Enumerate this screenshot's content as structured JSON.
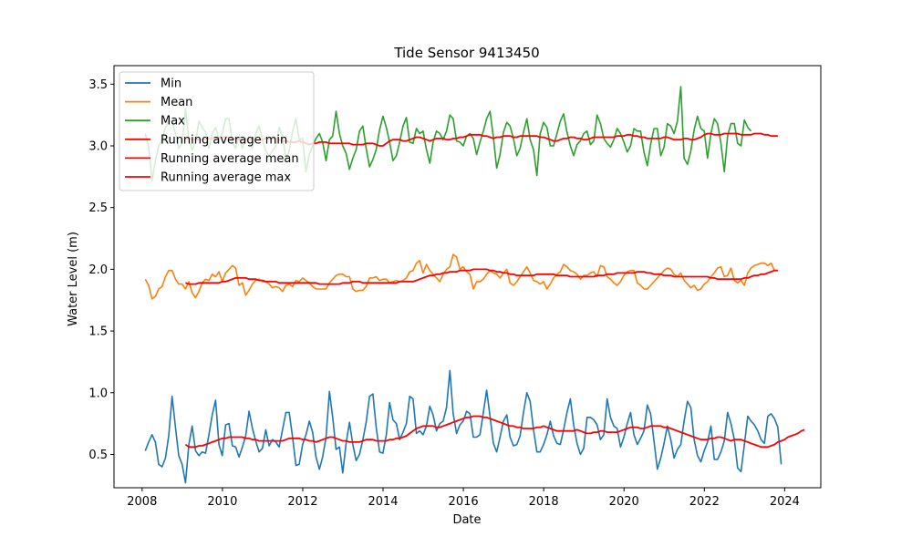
{
  "chart_data": {
    "type": "line",
    "title": "Tide Sensor 9413450",
    "xlabel": "Date",
    "ylabel": "Water Level (m)",
    "xlim": [
      2007.3,
      2024.9
    ],
    "ylim": [
      0.23,
      3.65
    ],
    "xticks": [
      2008,
      2010,
      2012,
      2014,
      2016,
      2018,
      2020,
      2022,
      2024
    ],
    "yticks": [
      0.5,
      1.0,
      1.5,
      2.0,
      2.5,
      3.0,
      3.5
    ],
    "ytick_labels": [
      "0.5",
      "1.0",
      "1.5",
      "2.0",
      "2.5",
      "3.0",
      "3.5"
    ],
    "legend_position": "upper-left",
    "grid": false,
    "x_start": 2008.08,
    "x_step": 0.0833333,
    "series": [
      {
        "name": "Min",
        "color": "#1f77b4",
        "values": [
          0.53,
          0.6,
          0.66,
          0.6,
          0.42,
          0.4,
          0.47,
          0.65,
          0.97,
          0.72,
          0.49,
          0.42,
          0.27,
          0.58,
          0.73,
          0.53,
          0.49,
          0.52,
          0.51,
          0.66,
          0.82,
          0.94,
          0.58,
          0.49,
          0.74,
          0.75,
          0.57,
          0.56,
          0.48,
          0.56,
          0.65,
          0.85,
          0.71,
          0.61,
          0.52,
          0.55,
          0.7,
          0.57,
          0.62,
          0.6,
          0.56,
          0.7,
          0.84,
          0.84,
          0.64,
          0.41,
          0.42,
          0.58,
          0.66,
          0.77,
          0.68,
          0.48,
          0.38,
          0.48,
          0.64,
          1.01,
          0.8,
          0.54,
          0.56,
          0.35,
          0.59,
          0.76,
          0.58,
          0.45,
          0.5,
          0.62,
          0.76,
          0.97,
          0.99,
          0.72,
          0.52,
          0.51,
          0.66,
          0.92,
          0.78,
          0.75,
          0.62,
          0.68,
          0.75,
          0.97,
          0.95,
          0.67,
          0.69,
          0.66,
          0.73,
          0.89,
          0.82,
          0.69,
          0.75,
          0.77,
          0.88,
          1.18,
          0.83,
          0.67,
          0.74,
          0.77,
          0.85,
          0.83,
          0.64,
          0.64,
          0.66,
          0.84,
          1.02,
          0.81,
          0.59,
          0.52,
          0.64,
          0.77,
          0.82,
          0.64,
          0.57,
          0.58,
          0.65,
          0.84,
          1.0,
          0.93,
          0.7,
          0.52,
          0.52,
          0.58,
          0.66,
          0.77,
          0.65,
          0.59,
          0.58,
          0.7,
          0.84,
          0.95,
          0.74,
          0.59,
          0.5,
          0.55,
          0.8,
          0.8,
          0.78,
          0.74,
          0.62,
          0.66,
          0.95,
          0.8,
          0.73,
          0.71,
          0.56,
          0.64,
          0.75,
          0.84,
          0.66,
          0.58,
          0.63,
          0.69,
          0.9,
          0.83,
          0.61,
          0.38,
          0.47,
          0.59,
          0.73,
          0.62,
          0.47,
          0.54,
          0.58,
          0.77,
          0.93,
          0.88,
          0.62,
          0.49,
          0.44,
          0.53,
          0.6,
          0.73,
          0.46,
          0.46,
          0.52,
          0.61,
          0.84,
          0.75,
          0.62,
          0.39,
          0.36,
          0.58,
          0.81,
          0.77,
          0.74,
          0.69,
          0.62,
          0.59,
          0.81,
          0.83,
          0.79,
          0.72,
          0.42
        ]
      },
      {
        "name": "Mean",
        "color": "#ff7f0e",
        "values": [
          1.92,
          1.87,
          1.76,
          1.78,
          1.84,
          1.86,
          1.94,
          1.99,
          1.99,
          1.92,
          1.88,
          1.88,
          1.84,
          1.9,
          1.81,
          1.77,
          1.82,
          1.89,
          1.92,
          1.91,
          1.96,
          1.94,
          1.98,
          1.9,
          1.97,
          2.0,
          2.03,
          2.01,
          1.87,
          1.89,
          1.79,
          1.83,
          1.88,
          1.91,
          1.92,
          1.9,
          1.9,
          1.88,
          1.85,
          1.86,
          1.85,
          1.82,
          1.87,
          1.88,
          1.86,
          1.91,
          1.9,
          1.93,
          1.91,
          1.89,
          1.86,
          1.84,
          1.84,
          1.84,
          1.84,
          1.89,
          1.92,
          1.95,
          1.96,
          1.96,
          1.94,
          1.94,
          1.84,
          1.82,
          1.83,
          1.83,
          1.86,
          1.93,
          1.93,
          1.94,
          1.91,
          1.92,
          1.92,
          1.89,
          1.9,
          1.91,
          1.9,
          1.91,
          1.93,
          1.98,
          1.99,
          2.05,
          2.07,
          1.97,
          2.04,
          1.99,
          1.96,
          1.93,
          1.9,
          1.96,
          2.0,
          2.02,
          2.12,
          2.1,
          2.0,
          2.02,
          1.98,
          1.96,
          1.84,
          1.9,
          1.9,
          1.92,
          1.96,
          1.99,
          1.97,
          1.96,
          1.93,
          1.97,
          2.0,
          1.89,
          1.87,
          1.9,
          1.94,
          1.98,
          2.02,
          1.97,
          1.91,
          1.9,
          1.88,
          1.9,
          1.84,
          1.88,
          1.93,
          1.96,
          1.98,
          2.04,
          2.02,
          1.99,
          1.98,
          1.96,
          1.92,
          1.95,
          1.95,
          1.97,
          1.98,
          1.94,
          2.03,
          2.02,
          1.94,
          1.92,
          1.89,
          1.87,
          1.9,
          1.95,
          1.98,
          1.99,
          1.99,
          1.89,
          1.87,
          1.84,
          1.84,
          1.87,
          1.9,
          1.93,
          1.96,
          1.99,
          2.01,
          2.0,
          1.96,
          1.94,
          1.97,
          1.91,
          1.88,
          1.85,
          1.87,
          1.83,
          1.84,
          1.88,
          1.9,
          1.94,
          1.97,
          2.01,
          2.02,
          1.94,
          1.95,
          2.01,
          1.91,
          1.89,
          1.91,
          1.87,
          1.97,
          2.01,
          2.03,
          2.04,
          2.05,
          2.05,
          2.03,
          2.05,
          1.99
        ]
      },
      {
        "name": "Max",
        "color": "#2ca02c",
        "values": [
          3.1,
          2.99,
          2.72,
          2.88,
          3.0,
          3.05,
          3.15,
          3.2,
          3.2,
          3.1,
          2.98,
          3.02,
          3.3,
          3.05,
          2.97,
          3.03,
          3.2,
          3.15,
          3.11,
          2.98,
          3.1,
          3.15,
          3.05,
          3.1,
          3.22,
          3.22,
          3.03,
          2.98,
          3.08,
          2.98,
          3.06,
          3.02,
          2.98,
          3.1,
          3.16,
          3.05,
          2.96,
          2.92,
          2.96,
          3.0,
          3.15,
          3.08,
          2.9,
          2.96,
          3.12,
          3.22,
          3.05,
          3.06,
          2.79,
          2.93,
          3.0,
          3.06,
          3.1,
          3.03,
          2.88,
          3.05,
          3.08,
          3.28,
          3.1,
          3.0,
          2.94,
          2.81,
          2.9,
          2.97,
          3.12,
          3.16,
          2.98,
          2.83,
          2.89,
          2.97,
          3.13,
          3.24,
          3.15,
          3.03,
          2.88,
          2.92,
          3.03,
          3.16,
          3.23,
          3.03,
          3.02,
          3.14,
          3.1,
          3.12,
          2.97,
          2.86,
          3.03,
          3.12,
          3.1,
          3.05,
          3.12,
          3.25,
          3.22,
          3.04,
          3.03,
          3.0,
          3.08,
          3.1,
          3.06,
          2.93,
          3.03,
          3.12,
          3.22,
          3.28,
          3.07,
          2.82,
          2.93,
          3.11,
          3.19,
          3.16,
          3.06,
          2.92,
          2.98,
          3.11,
          3.22,
          3.05,
          2.97,
          2.76,
          3.1,
          3.19,
          3.15,
          3.0,
          3.0,
          3.1,
          3.2,
          3.26,
          3.11,
          3.0,
          2.92,
          3.01,
          3.04,
          3.1,
          3.12,
          3.01,
          3.04,
          3.25,
          3.18,
          3.06,
          3.02,
          2.99,
          3.05,
          3.14,
          3.1,
          3.03,
          2.95,
          3.0,
          3.14,
          3.12,
          3.12,
          2.95,
          2.84,
          3.01,
          3.14,
          3.14,
          2.92,
          2.99,
          3.18,
          3.16,
          3.1,
          3.2,
          3.48,
          2.9,
          2.85,
          2.96,
          3.13,
          3.24,
          3.14,
          3.12,
          2.9,
          3.1,
          3.22,
          3.18,
          3.02,
          2.79,
          3.08,
          3.18,
          3.18,
          3.02,
          3.0,
          3.21,
          3.15,
          3.12
        ]
      },
      {
        "name": "Running average min",
        "color": "#ff0000",
        "start_index": 12,
        "values": [
          0.58,
          0.56,
          0.56,
          0.56,
          0.57,
          0.57,
          0.58,
          0.59,
          0.6,
          0.61,
          0.62,
          0.63,
          0.63,
          0.64,
          0.64,
          0.64,
          0.64,
          0.64,
          0.63,
          0.63,
          0.62,
          0.62,
          0.61,
          0.61,
          0.61,
          0.61,
          0.61,
          0.61,
          0.61,
          0.61,
          0.62,
          0.63,
          0.63,
          0.63,
          0.63,
          0.62,
          0.62,
          0.61,
          0.61,
          0.6,
          0.61,
          0.62,
          0.63,
          0.64,
          0.64,
          0.63,
          0.62,
          0.61,
          0.61,
          0.6,
          0.6,
          0.6,
          0.6,
          0.61,
          0.62,
          0.62,
          0.62,
          0.61,
          0.61,
          0.61,
          0.61,
          0.62,
          0.62,
          0.63,
          0.63,
          0.64,
          0.65,
          0.67,
          0.69,
          0.71,
          0.72,
          0.73,
          0.73,
          0.73,
          0.73,
          0.72,
          0.72,
          0.73,
          0.74,
          0.75,
          0.76,
          0.77,
          0.78,
          0.79,
          0.8,
          0.8,
          0.81,
          0.81,
          0.81,
          0.8,
          0.8,
          0.79,
          0.78,
          0.77,
          0.76,
          0.75,
          0.74,
          0.73,
          0.73,
          0.72,
          0.72,
          0.71,
          0.71,
          0.71,
          0.71,
          0.72,
          0.72,
          0.73,
          0.72,
          0.71,
          0.7,
          0.69,
          0.69,
          0.69,
          0.69,
          0.69,
          0.69,
          0.7,
          0.69,
          0.68,
          0.67,
          0.67,
          0.68,
          0.68,
          0.69,
          0.69,
          0.68,
          0.68,
          0.68,
          0.68,
          0.69,
          0.7,
          0.71,
          0.72,
          0.72,
          0.72,
          0.71,
          0.71,
          0.72,
          0.73,
          0.73,
          0.73,
          0.73,
          0.72,
          0.72,
          0.71,
          0.7,
          0.69,
          0.68,
          0.67,
          0.66,
          0.65,
          0.64,
          0.63,
          0.62,
          0.62,
          0.62,
          0.63,
          0.63,
          0.64,
          0.64,
          0.63,
          0.62,
          0.61,
          0.62,
          0.62,
          0.62,
          0.61,
          0.6,
          0.59,
          0.58,
          0.57,
          0.56,
          0.56,
          0.56,
          0.57,
          0.58,
          0.6,
          0.61,
          0.62,
          0.64,
          0.65,
          0.66,
          0.67,
          0.69,
          0.7
        ]
      },
      {
        "name": "Running average mean",
        "color": "#ff0000",
        "start_index": 12,
        "values": [
          1.89,
          1.88,
          1.88,
          1.88,
          1.89,
          1.89,
          1.89,
          1.89,
          1.89,
          1.89,
          1.89,
          1.9,
          1.9,
          1.91,
          1.92,
          1.93,
          1.93,
          1.93,
          1.93,
          1.92,
          1.92,
          1.92,
          1.91,
          1.91,
          1.9,
          1.9,
          1.9,
          1.9,
          1.89,
          1.89,
          1.89,
          1.89,
          1.89,
          1.89,
          1.89,
          1.89,
          1.89,
          1.89,
          1.89,
          1.89,
          1.88,
          1.88,
          1.88,
          1.88,
          1.88,
          1.88,
          1.88,
          1.89,
          1.89,
          1.89,
          1.9,
          1.9,
          1.9,
          1.89,
          1.89,
          1.89,
          1.89,
          1.89,
          1.89,
          1.89,
          1.89,
          1.89,
          1.89,
          1.89,
          1.9,
          1.9,
          1.9,
          1.9,
          1.9,
          1.91,
          1.92,
          1.93,
          1.94,
          1.95,
          1.95,
          1.96,
          1.96,
          1.97,
          1.97,
          1.98,
          1.98,
          1.98,
          1.99,
          1.99,
          1.99,
          1.99,
          2.0,
          2.0,
          2.0,
          2.0,
          2.0,
          1.99,
          1.99,
          1.98,
          1.98,
          1.97,
          1.97,
          1.96,
          1.96,
          1.95,
          1.95,
          1.95,
          1.95,
          1.95,
          1.95,
          1.96,
          1.96,
          1.96,
          1.96,
          1.96,
          1.96,
          1.95,
          1.95,
          1.95,
          1.95,
          1.94,
          1.94,
          1.94,
          1.94,
          1.94,
          1.94,
          1.94,
          1.94,
          1.95,
          1.95,
          1.95,
          1.96,
          1.96,
          1.96,
          1.97,
          1.97,
          1.97,
          1.97,
          1.97,
          1.97,
          1.98,
          1.98,
          1.98,
          1.97,
          1.97,
          1.96,
          1.96,
          1.96,
          1.95,
          1.95,
          1.95,
          1.94,
          1.94,
          1.94,
          1.94,
          1.94,
          1.94,
          1.94,
          1.94,
          1.94,
          1.94,
          1.94,
          1.93,
          1.93,
          1.92,
          1.92,
          1.92,
          1.92,
          1.92,
          1.92,
          1.92,
          1.92,
          1.93,
          1.93,
          1.94,
          1.95,
          1.95,
          1.96,
          1.96,
          1.97,
          1.98,
          1.99,
          1.99
        ]
      },
      {
        "name": "Running average max",
        "color": "#ff0000",
        "start_index": 12,
        "values": [
          3.06,
          3.06,
          3.05,
          3.05,
          3.05,
          3.05,
          3.05,
          3.06,
          3.06,
          3.06,
          3.07,
          3.07,
          3.07,
          3.07,
          3.06,
          3.06,
          3.05,
          3.05,
          3.05,
          3.05,
          3.05,
          3.05,
          3.05,
          3.05,
          3.06,
          3.06,
          3.06,
          3.06,
          3.05,
          3.04,
          3.04,
          3.03,
          3.03,
          3.03,
          3.04,
          3.03,
          3.02,
          3.01,
          3.02,
          3.02,
          3.03,
          3.03,
          3.03,
          3.02,
          3.02,
          3.02,
          3.02,
          3.02,
          3.02,
          3.02,
          3.01,
          3.01,
          3.01,
          3.01,
          3.02,
          3.02,
          3.02,
          3.01,
          3.0,
          3.0,
          3.02,
          3.04,
          3.05,
          3.05,
          3.05,
          3.04,
          3.04,
          3.05,
          3.06,
          3.07,
          3.07,
          3.06,
          3.05,
          3.04,
          3.05,
          3.06,
          3.06,
          3.06,
          3.05,
          3.05,
          3.06,
          3.06,
          3.07,
          3.07,
          3.08,
          3.09,
          3.09,
          3.09,
          3.09,
          3.08,
          3.08,
          3.07,
          3.06,
          3.07,
          3.07,
          3.08,
          3.08,
          3.08,
          3.07,
          3.07,
          3.08,
          3.08,
          3.08,
          3.08,
          3.08,
          3.08,
          3.07,
          3.07,
          3.06,
          3.05,
          3.04,
          3.04,
          3.05,
          3.06,
          3.06,
          3.07,
          3.07,
          3.06,
          3.06,
          3.05,
          3.05,
          3.06,
          3.07,
          3.07,
          3.07,
          3.07,
          3.07,
          3.07,
          3.07,
          3.08,
          3.08,
          3.08,
          3.09,
          3.09,
          3.08,
          3.08,
          3.07,
          3.07,
          3.06,
          3.06,
          3.06,
          3.06,
          3.06,
          3.07,
          3.07,
          3.06,
          3.05,
          3.05,
          3.05,
          3.06,
          3.06,
          3.05,
          3.05,
          3.06,
          3.07,
          3.09,
          3.1,
          3.1,
          3.09,
          3.09,
          3.09,
          3.1,
          3.1,
          3.1,
          3.1,
          3.1,
          3.09,
          3.09,
          3.09,
          3.09,
          3.1,
          3.1,
          3.1,
          3.09,
          3.09,
          3.08,
          3.08,
          3.08
        ]
      }
    ]
  }
}
